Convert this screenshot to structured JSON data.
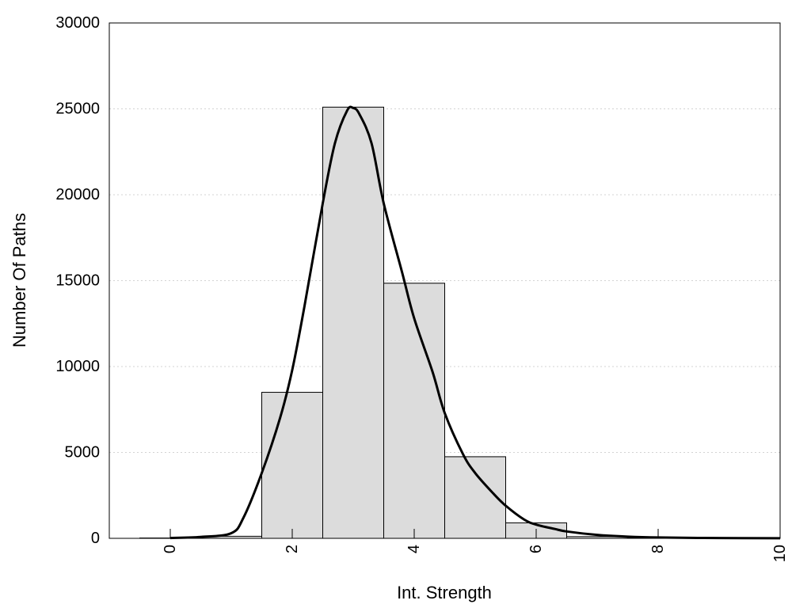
{
  "chart_data": {
    "type": "bar",
    "xlabel": "Int. Strength",
    "ylabel": "Number Of Paths",
    "xlim": [
      -1,
      10
    ],
    "ylim": [
      0,
      30000
    ],
    "x_ticks": [
      0,
      2,
      4,
      6,
      8,
      10
    ],
    "y_ticks": [
      0,
      5000,
      10000,
      15000,
      20000,
      25000,
      30000
    ],
    "grid": "horizontal dotted",
    "bin_width": 1,
    "bins": [
      {
        "x": 0,
        "value": 20
      },
      {
        "x": 1,
        "value": 120
      },
      {
        "x": 2,
        "value": 8500
      },
      {
        "x": 3,
        "value": 25100
      },
      {
        "x": 4,
        "value": 14850
      },
      {
        "x": 5,
        "value": 4750
      },
      {
        "x": 6,
        "value": 900
      },
      {
        "x": 7,
        "value": 100
      },
      {
        "x": 8,
        "value": 20
      },
      {
        "x": 9,
        "value": 10
      }
    ],
    "curve": {
      "x": [
        0.0,
        0.5,
        1.0,
        1.2,
        1.5,
        1.8,
        2.0,
        2.2,
        2.5,
        2.7,
        2.9,
        3.0,
        3.1,
        3.3,
        3.5,
        3.8,
        4.0,
        4.3,
        4.5,
        4.8,
        5.0,
        5.3,
        5.5,
        5.8,
        6.0,
        6.3,
        6.5,
        7.0,
        7.5,
        8.0,
        9.0,
        10.0
      ],
      "y": [
        20,
        80,
        300,
        1200,
        3800,
        7000,
        9800,
        13500,
        19500,
        23000,
        24900,
        25050,
        24700,
        23000,
        19500,
        15500,
        12800,
        9700,
        7300,
        4900,
        3800,
        2600,
        1900,
        1100,
        800,
        550,
        400,
        200,
        100,
        50,
        15,
        5
      ]
    },
    "colors": {
      "bar_fill": "#dcdcdc",
      "bar_stroke": "#000000",
      "curve": "#000000",
      "grid": "#d3d3d3"
    }
  }
}
